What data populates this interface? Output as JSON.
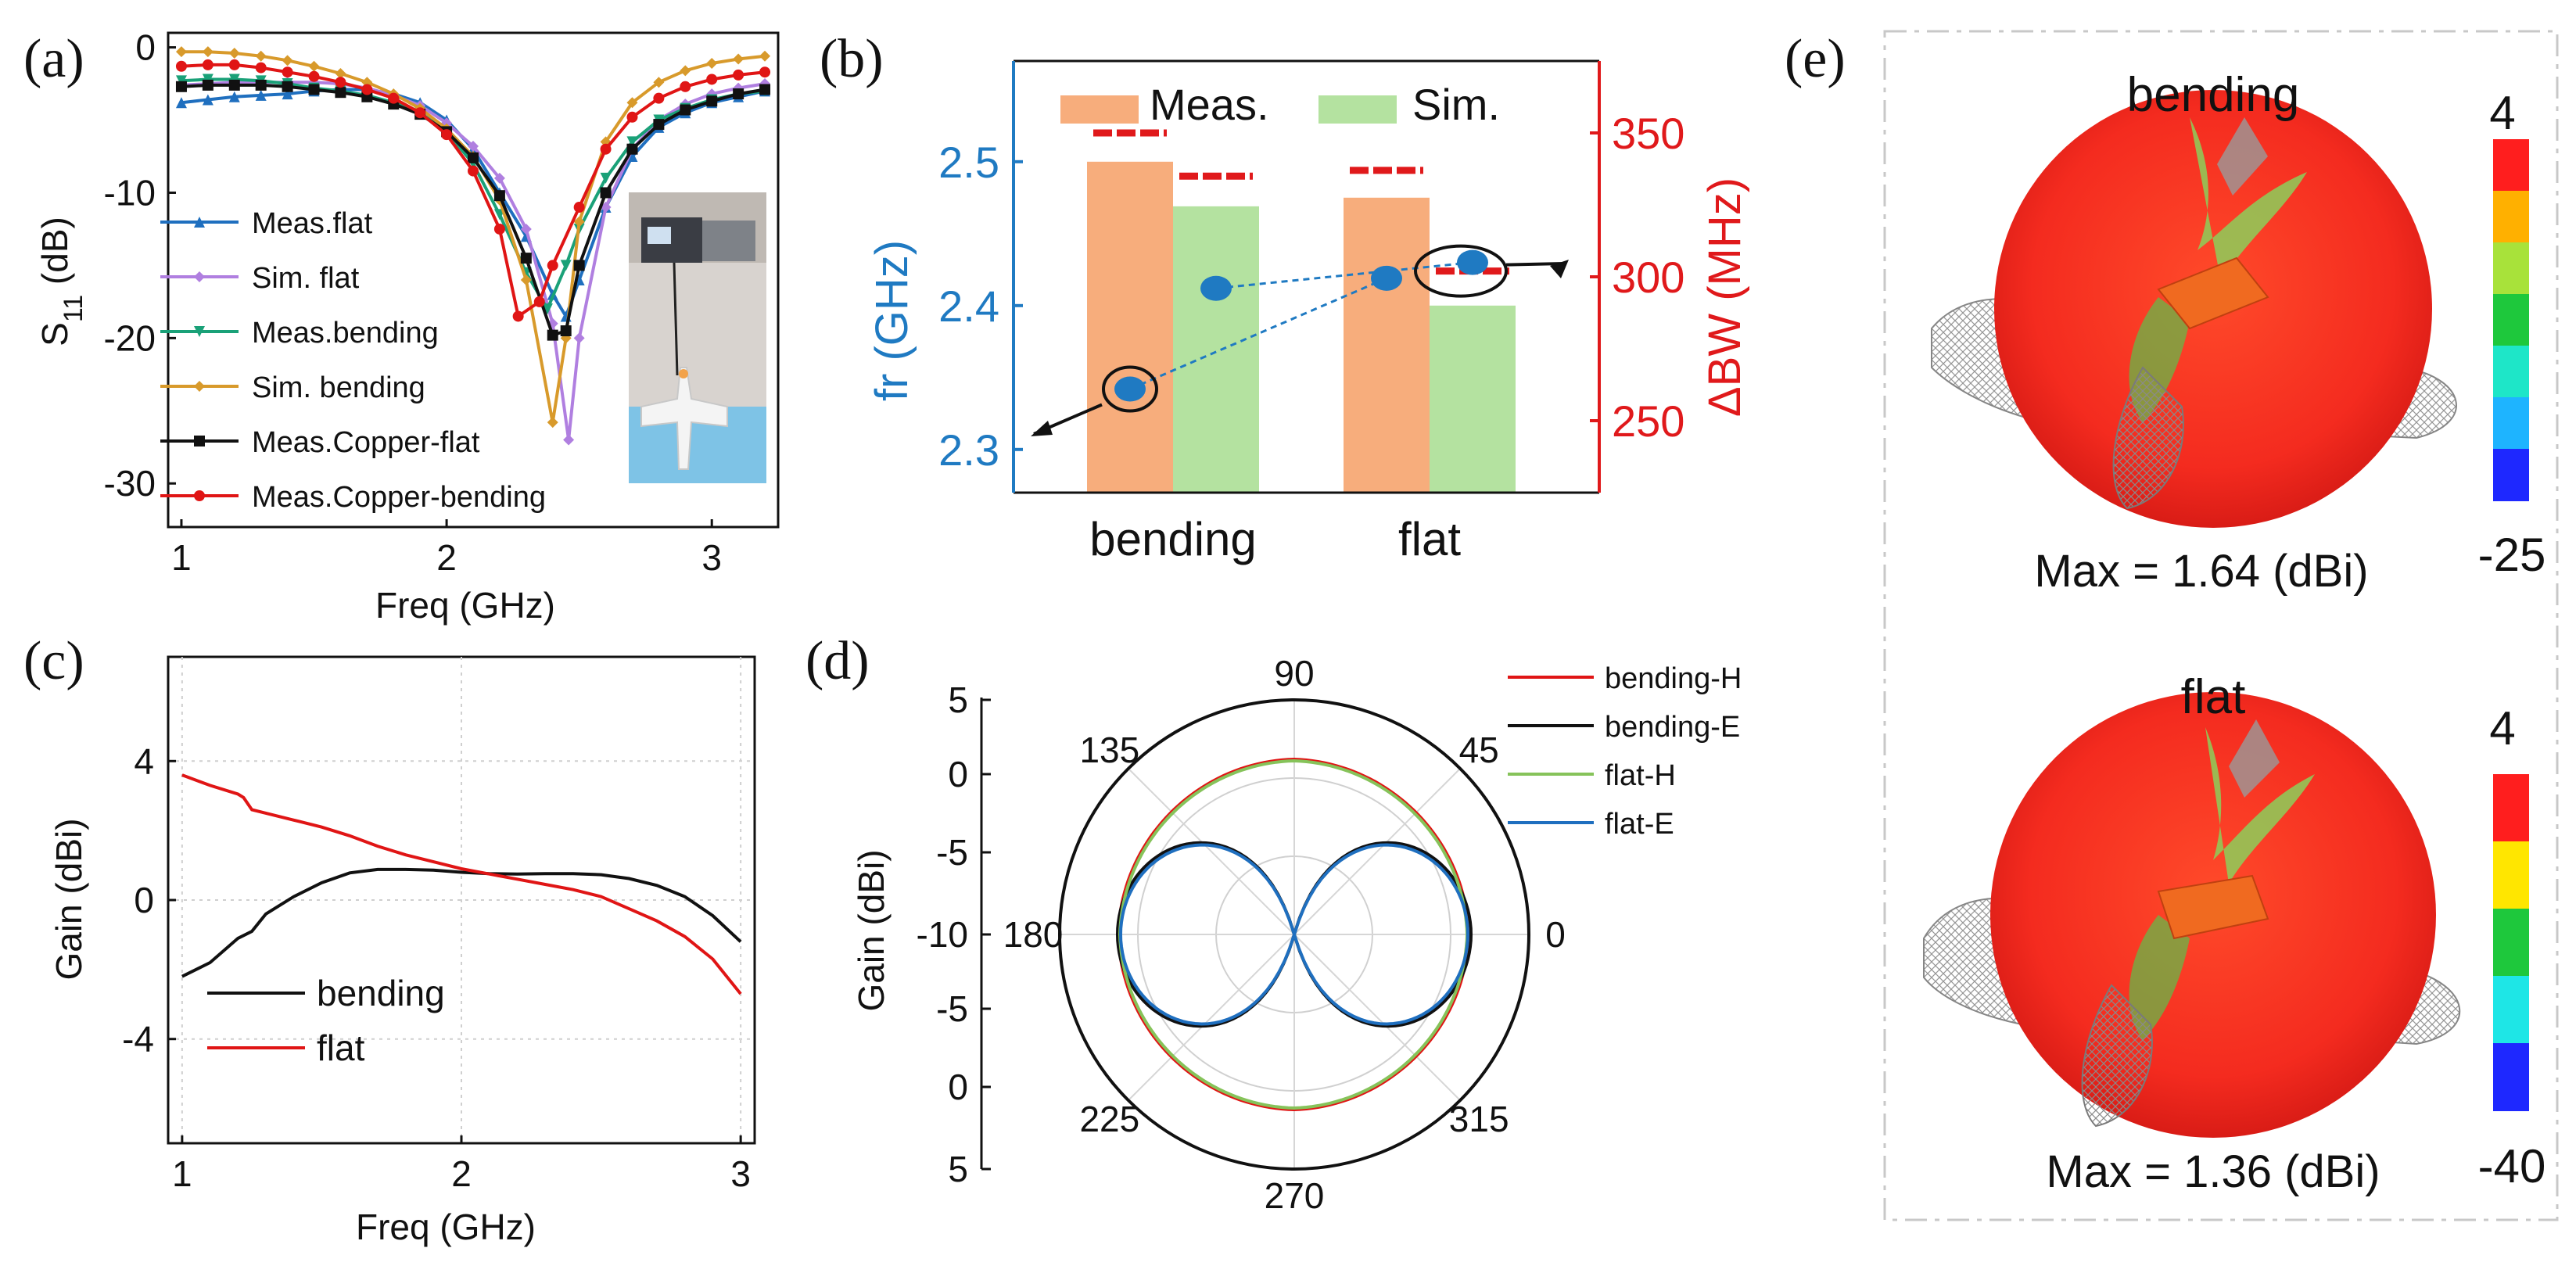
{
  "panel_labels": {
    "a": "(a)",
    "b": "(b)",
    "c": "(c)",
    "d": "(d)",
    "e": "(e)"
  },
  "chart_data": [
    {
      "id": "a",
      "type": "line",
      "xlabel": "Freq  (GHz)",
      "ylabel": "S11 (dB)",
      "ylabel_main": "S",
      "ylabel_sub": "11",
      "ylabel_tail": "  (dB)",
      "xlim": [
        0.95,
        3.25
      ],
      "ylim": [
        -33,
        1
      ],
      "xticks": [
        1,
        2,
        3
      ],
      "yticks": [
        0,
        -10,
        -20,
        -30
      ],
      "xtick_labels": [
        "1",
        "2",
        "3"
      ],
      "ytick_labels": [
        "0",
        "-10",
        "-20",
        "-30"
      ],
      "inset": "photo of bending antenna measurement setup",
      "series": [
        {
          "name": "Meas.flat",
          "color": "#1f6fbf",
          "marker": "triangle",
          "x": [
            1.0,
            1.1,
            1.2,
            1.3,
            1.4,
            1.5,
            1.6,
            1.7,
            1.8,
            1.9,
            2.0,
            2.1,
            2.2,
            2.3,
            2.4,
            2.45,
            2.5,
            2.6,
            2.7,
            2.8,
            2.9,
            3.0,
            3.1,
            3.2
          ],
          "y": [
            -3.8,
            -3.6,
            -3.4,
            -3.3,
            -3.2,
            -3.0,
            -2.9,
            -2.9,
            -3.2,
            -3.8,
            -5.0,
            -7.0,
            -10.0,
            -13.0,
            -17.0,
            -18.5,
            -16.0,
            -11.0,
            -7.5,
            -5.5,
            -4.5,
            -3.8,
            -3.4,
            -3.0
          ]
        },
        {
          "name": "Sim. flat",
          "color": "#b07fe0",
          "marker": "diamond",
          "x": [
            1.0,
            1.1,
            1.2,
            1.3,
            1.4,
            1.5,
            1.6,
            1.7,
            1.8,
            1.9,
            2.0,
            2.1,
            2.2,
            2.3,
            2.4,
            2.46,
            2.5,
            2.6,
            2.7,
            2.8,
            2.9,
            3.0,
            3.1,
            3.2
          ],
          "y": [
            -2.6,
            -2.5,
            -2.4,
            -2.4,
            -2.4,
            -2.4,
            -2.5,
            -2.8,
            -3.3,
            -4.0,
            -5.2,
            -6.8,
            -9.0,
            -12.5,
            -19.0,
            -27.0,
            -20.0,
            -11.0,
            -7.0,
            -5.0,
            -3.9,
            -3.2,
            -2.8,
            -2.5
          ]
        },
        {
          "name": "Meas.bending",
          "color": "#1aa178",
          "marker": "triangle-down",
          "x": [
            1.0,
            1.1,
            1.2,
            1.3,
            1.4,
            1.5,
            1.6,
            1.7,
            1.8,
            1.9,
            2.0,
            2.1,
            2.2,
            2.3,
            2.38,
            2.45,
            2.5,
            2.6,
            2.7,
            2.8,
            2.9,
            3.0,
            3.1,
            3.2
          ],
          "y": [
            -2.3,
            -2.2,
            -2.2,
            -2.3,
            -2.5,
            -2.8,
            -3.0,
            -3.3,
            -3.8,
            -4.5,
            -5.8,
            -8.0,
            -11.5,
            -15.5,
            -18.0,
            -15.0,
            -12.5,
            -9.0,
            -6.5,
            -5.0,
            -4.2,
            -3.6,
            -3.2,
            -3.0
          ]
        },
        {
          "name": "Sim. bending",
          "color": "#d89a2b",
          "marker": "diamond",
          "x": [
            1.0,
            1.1,
            1.2,
            1.3,
            1.4,
            1.5,
            1.6,
            1.7,
            1.8,
            1.9,
            2.0,
            2.1,
            2.2,
            2.3,
            2.4,
            2.45,
            2.5,
            2.6,
            2.7,
            2.8,
            2.9,
            3.0,
            3.1,
            3.2
          ],
          "y": [
            -0.3,
            -0.3,
            -0.4,
            -0.6,
            -0.9,
            -1.3,
            -1.8,
            -2.4,
            -3.2,
            -4.2,
            -5.6,
            -7.5,
            -10.5,
            -16.0,
            -25.8,
            -20.0,
            -12.0,
            -6.5,
            -3.8,
            -2.4,
            -1.6,
            -1.1,
            -0.8,
            -0.6
          ]
        },
        {
          "name": "Meas.Copper-flat",
          "color": "#111111",
          "marker": "square",
          "x": [
            1.0,
            1.1,
            1.2,
            1.3,
            1.4,
            1.5,
            1.6,
            1.7,
            1.8,
            1.9,
            2.0,
            2.1,
            2.2,
            2.3,
            2.4,
            2.45,
            2.5,
            2.6,
            2.7,
            2.8,
            2.9,
            3.0,
            3.1,
            3.2
          ],
          "y": [
            -2.7,
            -2.6,
            -2.6,
            -2.6,
            -2.7,
            -2.9,
            -3.1,
            -3.4,
            -3.9,
            -4.6,
            -5.8,
            -7.6,
            -10.2,
            -14.5,
            -19.8,
            -19.5,
            -15.0,
            -10.0,
            -7.0,
            -5.3,
            -4.3,
            -3.7,
            -3.2,
            -2.9
          ]
        },
        {
          "name": "Meas.Copper-bending",
          "color": "#e01515",
          "marker": "circle",
          "x": [
            1.0,
            1.1,
            1.2,
            1.3,
            1.4,
            1.5,
            1.6,
            1.7,
            1.8,
            1.9,
            2.0,
            2.1,
            2.2,
            2.27,
            2.35,
            2.4,
            2.5,
            2.6,
            2.7,
            2.8,
            2.9,
            3.0,
            3.1,
            3.2
          ],
          "y": [
            -1.3,
            -1.2,
            -1.2,
            -1.4,
            -1.7,
            -2.0,
            -2.4,
            -2.9,
            -3.5,
            -4.5,
            -6.0,
            -8.5,
            -12.5,
            -18.5,
            -17.5,
            -15.0,
            -11.0,
            -7.0,
            -4.8,
            -3.5,
            -2.7,
            -2.2,
            -1.9,
            -1.7
          ]
        }
      ]
    },
    {
      "id": "b",
      "type": "bar",
      "categories": [
        "bending",
        "flat"
      ],
      "legend": [
        "Meas.",
        "Sim."
      ],
      "bar_colors": [
        "#f7ad7c",
        "#b4e2a0"
      ],
      "bar_values_fr_GHz": {
        "Meas.": [
          2.5,
          2.475
        ],
        "Sim.": [
          2.469,
          2.4
        ]
      },
      "bw_MHz": {
        "Meas.": [
          350,
          337
        ],
        "Sim.": [
          335,
          302
        ]
      },
      "fr_points_GHz": {
        "Meas.": [
          2.342,
          2.419
        ],
        "Sim.": [
          2.412,
          2.43
        ]
      },
      "ylabel_left": "fr  (GHz)",
      "ylabel_right": "ΔBW  (MHz)",
      "left_ylim": [
        2.27,
        2.57
      ],
      "right_ylim": [
        225,
        375
      ],
      "left_ticks": [
        2.3,
        2.4,
        2.5
      ],
      "left_tick_labels": [
        "2.3",
        "2.4",
        "2.5"
      ],
      "right_ticks": [
        250,
        300,
        350
      ],
      "right_tick_labels": [
        "250",
        "300",
        "350"
      ],
      "left_color": "#1f7ac2",
      "right_color": "#e0191b"
    },
    {
      "id": "c",
      "type": "line",
      "xlabel": "Freq  (GHz)",
      "ylabel": "Gain  (dBi)",
      "xlim": [
        0.95,
        3.05
      ],
      "ylim": [
        -7,
        7
      ],
      "xticks": [
        1,
        2,
        3
      ],
      "yticks": [
        4,
        0,
        -4
      ],
      "xtick_labels": [
        "1",
        "2",
        "3"
      ],
      "ytick_labels": [
        "4",
        "0",
        "-4"
      ],
      "series": [
        {
          "name": "bending",
          "color": "#111111",
          "x": [
            1.0,
            1.1,
            1.2,
            1.25,
            1.3,
            1.4,
            1.5,
            1.6,
            1.7,
            1.8,
            1.9,
            2.0,
            2.1,
            2.2,
            2.3,
            2.4,
            2.5,
            2.6,
            2.7,
            2.8,
            2.9,
            3.0
          ],
          "y": [
            -2.2,
            -1.8,
            -1.1,
            -0.9,
            -0.4,
            0.1,
            0.5,
            0.78,
            0.88,
            0.88,
            0.86,
            0.8,
            0.76,
            0.75,
            0.76,
            0.76,
            0.73,
            0.62,
            0.42,
            0.1,
            -0.45,
            -1.2
          ]
        },
        {
          "name": "flat",
          "color": "#e01515",
          "x": [
            1.0,
            1.1,
            1.2,
            1.22,
            1.25,
            1.3,
            1.4,
            1.5,
            1.6,
            1.7,
            1.8,
            1.9,
            2.0,
            2.1,
            2.2,
            2.3,
            2.4,
            2.5,
            2.6,
            2.7,
            2.8,
            2.9,
            3.0
          ],
          "y": [
            3.6,
            3.3,
            3.05,
            2.95,
            2.6,
            2.5,
            2.3,
            2.1,
            1.85,
            1.55,
            1.3,
            1.1,
            0.9,
            0.75,
            0.6,
            0.45,
            0.3,
            0.1,
            -0.25,
            -0.6,
            -1.05,
            -1.7,
            -2.7
          ]
        }
      ]
    },
    {
      "id": "d",
      "type": "polar",
      "ylabel": "Gain  (dBi)",
      "r_ticks": [
        5,
        0,
        -5,
        -10
      ],
      "r_tick_labels_top": [
        "5",
        "0",
        "-5",
        "-10"
      ],
      "r_tick_labels_bottom": [
        "-5",
        "0",
        "5"
      ],
      "angle_labels": [
        "0",
        "45",
        "90",
        "135",
        "180",
        "225",
        "270",
        "315"
      ],
      "r_range_dBi": [
        -10,
        5
      ],
      "series": [
        {
          "name": "bending-H",
          "color": "#e01515",
          "pattern": "omni",
          "gain_dBi": 1.2
        },
        {
          "name": "bending-E",
          "color": "#111111",
          "pattern": "dipole",
          "gain_dBi": 1.3
        },
        {
          "name": "flat-H",
          "color": "#86c35a",
          "pattern": "omni",
          "gain_dBi": 1.1
        },
        {
          "name": "flat-E",
          "color": "#1f6fbf",
          "pattern": "dipole",
          "gain_dBi": 1.1
        }
      ]
    }
  ],
  "panel_e": {
    "top": {
      "title": "bending",
      "max_text": "Max = 1.64  (dBi)",
      "scale_max": "4",
      "scale_min": "-25"
    },
    "bottom": {
      "title": "flat",
      "max_text": "Max = 1.36  (dBi)",
      "scale_max": "4",
      "scale_min": "-40"
    },
    "colorbar_colors": [
      "#ff1e1e",
      "#ffb000",
      "#a8e23a",
      "#1ec83c",
      "#1ee6c8",
      "#1eb4ff",
      "#1e28ff"
    ]
  }
}
